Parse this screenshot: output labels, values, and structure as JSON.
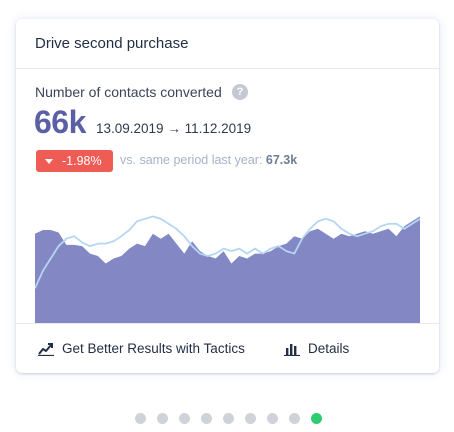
{
  "card": {
    "title": "Drive second purchase",
    "metric_label": "Number of contacts converted",
    "metric_value": "66k",
    "date_range": "13.09.2019 → 11.12.2019",
    "change": "-1.98%",
    "comparison_label": "vs. same period last year:",
    "comparison_value": "67.3k"
  },
  "footer": {
    "tactics_label": "Get Better Results with Tactics",
    "details_label": "Details"
  },
  "icons": {
    "help": "?",
    "caret": "caret-down-icon",
    "tactics": "trend-line-icon",
    "details": "bar-chart-icon"
  },
  "pager": {
    "count": 9,
    "active_index": 8
  },
  "colors": {
    "accent": "#5b5fa5",
    "area_fill": "#8388c4",
    "comparison_line": "#b4d6f2",
    "negative": "#ef5b55",
    "active_dot": "#2ecc71",
    "inactive_dot": "#cfd2d8"
  },
  "chart_data": {
    "type": "area",
    "series": [
      {
        "values": [
          72,
          75,
          75,
          73,
          63,
          63,
          62,
          56,
          54,
          48,
          52,
          54,
          60,
          64,
          62,
          72,
          68,
          72,
          64,
          56,
          66,
          58,
          54,
          52,
          58,
          48,
          54,
          52,
          56,
          56,
          58,
          62,
          64,
          70,
          68,
          74,
          76,
          72,
          68,
          72,
          70,
          72,
          74,
          72,
          74,
          76,
          70,
          78,
          82,
          86
        ]
      },
      {
        "values": [
          28,
          42,
          52,
          62,
          68,
          70,
          65,
          62,
          64,
          64,
          66,
          70,
          75,
          82,
          84,
          86,
          84,
          80,
          76,
          70,
          62,
          56,
          54,
          56,
          60,
          58,
          60,
          56,
          60,
          56,
          60,
          62,
          58,
          56,
          68,
          76,
          82,
          84,
          82,
          76,
          72,
          70,
          72,
          74,
          78,
          80,
          80,
          76,
          80,
          84
        ]
      }
    ],
    "ylim": [
      0,
      100
    ]
  }
}
